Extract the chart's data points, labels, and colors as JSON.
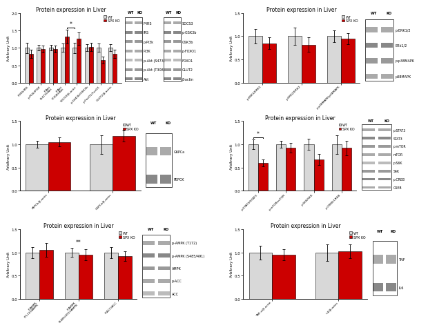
{
  "ylabel": "Arbitrary Unit",
  "wt_color": "#d8d8d8",
  "ko_color": "#cc0000",
  "panels": [
    {
      "title": "Protein expression in Liver",
      "categories": [
        "P-IRS/IRS",
        "p-PI3k/PI3K",
        "P-Akt\n(S473)/Akt",
        "P-Akt\n(T308)/Akt",
        "SOCS3/β-actin",
        "p-GSK3b/GSK3b",
        "p-FoxO1/FoxO1",
        "GLUT2/β-actin"
      ],
      "wt_values": [
        1.0,
        1.0,
        1.0,
        1.0,
        1.0,
        1.0,
        1.0,
        1.0
      ],
      "ko_values": [
        0.82,
        0.97,
        0.97,
        1.32,
        1.27,
        1.03,
        0.65,
        0.83
      ],
      "wt_err": [
        0.15,
        0.08,
        0.08,
        0.12,
        0.15,
        0.1,
        0.12,
        0.1
      ],
      "ko_err": [
        0.12,
        0.1,
        0.1,
        0.2,
        0.18,
        0.12,
        0.1,
        0.12
      ],
      "ylim": [
        0,
        2.0
      ],
      "yticks": [
        0.0,
        0.5,
        1.0,
        1.5,
        2.0
      ],
      "sig_bracket": [
        3,
        4
      ],
      "sig_label": "*",
      "blot_left": [
        "P-IRS",
        "IRS",
        "p-Pi3k",
        "PI3K",
        "p-Akt (S473)",
        "p-Akt (T308)",
        "Akt"
      ],
      "blot_right": [
        "SOCS3",
        "p-GSK3b",
        "GSK3b",
        "p-FOXO1",
        "FOXO1",
        "GLUT2",
        "β-actin"
      ]
    },
    {
      "title": "Protein expression in Liver",
      "categories": [
        "p-ERK1/ERK1",
        "p-ERK2/ERK2",
        "p-p38MAPK/p38MAPK"
      ],
      "wt_values": [
        1.0,
        1.0,
        1.0
      ],
      "ko_values": [
        0.85,
        0.82,
        0.95
      ],
      "wt_err": [
        0.15,
        0.18,
        0.12
      ],
      "ko_err": [
        0.12,
        0.15,
        0.12
      ],
      "ylim": [
        0,
        1.5
      ],
      "yticks": [
        0.0,
        0.5,
        1.0,
        1.5
      ],
      "blot_left": [
        "p-ERK1/2",
        "ERk1/2",
        "p-p38MAPK",
        "p38MAPK"
      ],
      "blot_right": []
    },
    {
      "title": "Protein expression in Liver",
      "categories": [
        "PEPCk/β-actin",
        "G6PCa/β-actin"
      ],
      "wt_values": [
        1.0,
        1.0
      ],
      "ko_values": [
        1.05,
        1.18
      ],
      "wt_err": [
        0.08,
        0.2
      ],
      "ko_err": [
        0.1,
        0.12
      ],
      "ylim": [
        0,
        1.5
      ],
      "yticks": [
        0.0,
        0.5,
        1.0,
        1.5
      ],
      "blot_left": [
        "G6PCa",
        "PEPCK"
      ],
      "blot_right": []
    },
    {
      "title": "Protein expression in Liver",
      "categories": [
        "p-STAT3/STAT3",
        "p-mTOR/mTOR",
        "p-S6K/S6K",
        "p-CREB/CREB"
      ],
      "wt_values": [
        1.0,
        1.0,
        1.0,
        1.0
      ],
      "ko_values": [
        0.6,
        0.93,
        0.67,
        0.92
      ],
      "wt_err": [
        0.1,
        0.08,
        0.12,
        0.2
      ],
      "ko_err": [
        0.08,
        0.1,
        0.12,
        0.15
      ],
      "ylim": [
        0,
        1.5
      ],
      "yticks": [
        0.0,
        0.5,
        1.0,
        1.5
      ],
      "sig_bracket": [
        0,
        0
      ],
      "sig_label": "*",
      "blot_left": [
        "p-STAT3",
        "STAT3",
        "p-mTOR",
        "mTOR",
        "p-S6K",
        "S6K",
        "p-CREB",
        "CREB"
      ],
      "blot_right": []
    },
    {
      "title": "Protein expression in Liver",
      "categories": [
        "P-AMPK\n(T172)/AMPK",
        "P-AMPK\n(S485/491)/AMPK",
        "P-ACC/ACC"
      ],
      "wt_values": [
        1.0,
        1.0,
        1.0
      ],
      "ko_values": [
        1.05,
        0.95,
        0.92
      ],
      "wt_err": [
        0.12,
        0.1,
        0.12
      ],
      "ko_err": [
        0.15,
        0.12,
        0.1
      ],
      "ylim": [
        0,
        1.5
      ],
      "yticks": [
        0.0,
        0.5,
        1.0,
        1.5
      ],
      "sig_label_above": {
        "bar_idx": 1,
        "label": "**"
      },
      "blot_left": [
        "p-AMPK (T172)",
        "p-AMPK (S485/491)",
        "AMPK",
        "p-ACC",
        "ACC"
      ],
      "blot_right": []
    },
    {
      "title": "Protein expression in Liver",
      "categories": [
        "TNF-α/β-actin",
        "IL6/β-actin"
      ],
      "wt_values": [
        1.0,
        1.0
      ],
      "ko_values": [
        0.95,
        1.02
      ],
      "wt_err": [
        0.15,
        0.18
      ],
      "ko_err": [
        0.12,
        0.15
      ],
      "ylim": [
        0,
        1.5
      ],
      "yticks": [
        0.0,
        0.5,
        1.0,
        1.5
      ],
      "blot_left": [
        "TNF",
        "IL6"
      ],
      "blot_right": []
    }
  ]
}
